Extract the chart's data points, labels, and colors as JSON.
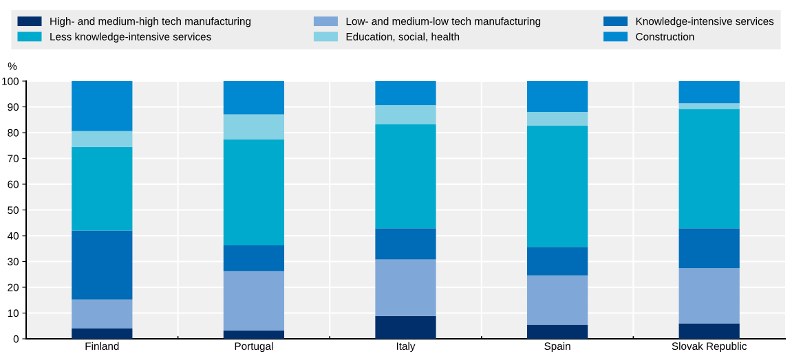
{
  "chart_data": {
    "type": "bar",
    "stacked": true,
    "ylabel": "%",
    "categories": [
      "Finland",
      "Portugal",
      "Italy",
      "Spain",
      "Slovak Republic"
    ],
    "series": [
      {
        "name": "High- and medium-high tech manufacturing",
        "color": "#002f6c",
        "values": [
          4.0,
          3.3,
          8.9,
          5.5,
          6.0
        ]
      },
      {
        "name": "Low- and medium-low tech manufacturing",
        "color": "#7fa8d8",
        "values": [
          11.3,
          23.0,
          21.9,
          19.1,
          21.4
        ]
      },
      {
        "name": "Knowledge-intensive services",
        "color": "#006bb6",
        "values": [
          26.7,
          10.0,
          12.1,
          11.1,
          15.5
        ]
      },
      {
        "name": "Less knowledge-intensive services",
        "color": "#00aacc",
        "values": [
          32.5,
          41.1,
          40.3,
          47.1,
          46.3
        ]
      },
      {
        "name": "Education, social, health",
        "color": "#86d1e4",
        "values": [
          6.1,
          9.7,
          7.5,
          5.2,
          2.2
        ]
      },
      {
        "name": "Construction",
        "color": "#0088d1",
        "values": [
          19.4,
          12.9,
          9.3,
          12.0,
          8.6
        ]
      }
    ],
    "ylim": [
      0,
      100
    ],
    "yticks": [
      0,
      10,
      20,
      30,
      40,
      50,
      60,
      70,
      80,
      90,
      100
    ],
    "grid": true,
    "legend": "top"
  }
}
